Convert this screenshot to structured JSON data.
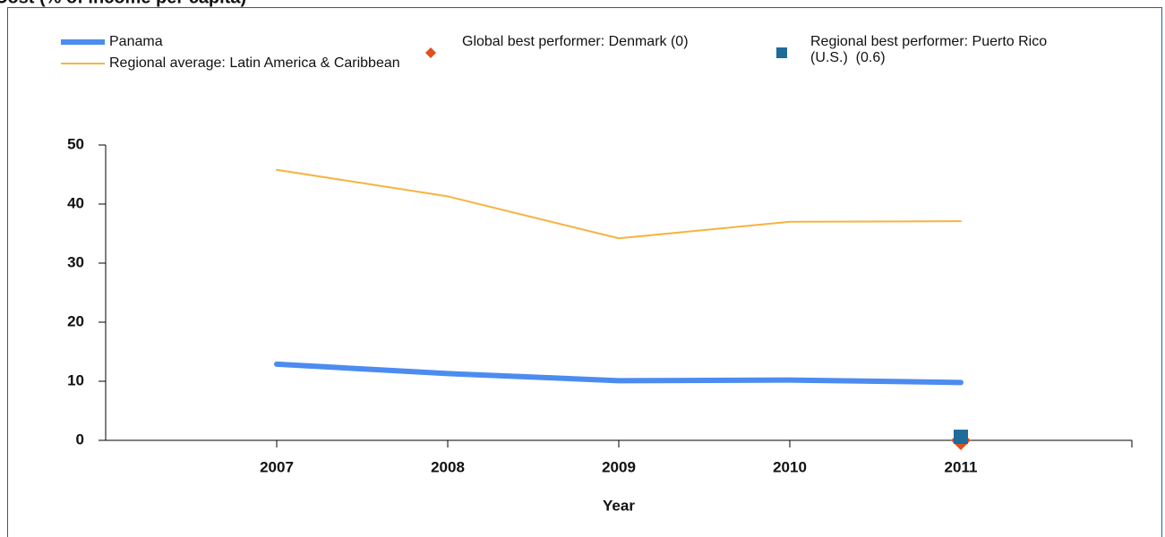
{
  "chart_data": {
    "type": "line",
    "title": "Cost (% of income per capita)",
    "xlabel": "Year",
    "x": [
      2007,
      2008,
      2009,
      2010,
      2011
    ],
    "xlim": [
      2006,
      2012
    ],
    "xticks": [
      2007,
      2008,
      2009,
      2010,
      2011
    ],
    "ylim": [
      0,
      50
    ],
    "yticks": [
      0,
      10,
      20,
      30,
      40,
      50
    ],
    "series": [
      {
        "name": "Panama",
        "color": "#4c8cf0",
        "line_width": 6,
        "x": [
          2007,
          2008,
          2009,
          2010,
          2011
        ],
        "values": [
          12.9,
          11.3,
          10.1,
          10.2,
          9.8
        ]
      },
      {
        "name": "Regional average: Latin America & Caribbean",
        "color": "#f5b440",
        "line_width": 2,
        "x": [
          2007,
          2008,
          2009,
          2010,
          2011
        ],
        "values": [
          45.8,
          41.3,
          34.2,
          37.0,
          37.1
        ]
      },
      {
        "name": "Global best performer: Denmark (0)",
        "color": "#e0501e",
        "marker": "diamond",
        "x": [
          2011
        ],
        "values": [
          0
        ]
      },
      {
        "name": "Regional best performer: Puerto Rico (U.S.)  (0.6)",
        "color": "#1f6b9a",
        "marker": "square",
        "x": [
          2011
        ],
        "values": [
          0.6
        ]
      }
    ]
  }
}
